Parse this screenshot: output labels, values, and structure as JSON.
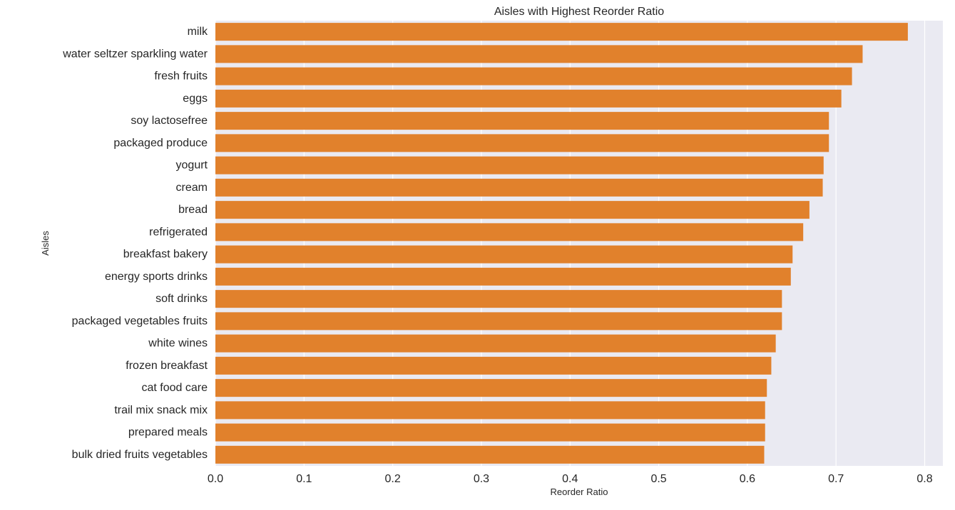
{
  "chart_data": {
    "type": "bar",
    "orientation": "horizontal",
    "title": "Aisles with Highest Reorder Ratio",
    "xlabel": "Reorder Ratio",
    "ylabel": "Aisles",
    "xlim": [
      0,
      0.82
    ],
    "xticks": [
      "0.0",
      "0.1",
      "0.2",
      "0.3",
      "0.4",
      "0.5",
      "0.6",
      "0.7",
      "0.8"
    ],
    "grid": true,
    "legend": "none",
    "categories": [
      "milk",
      "water seltzer sparkling water",
      "fresh fruits",
      "eggs",
      "soy lactosefree",
      "packaged produce",
      "yogurt",
      "cream",
      "bread",
      "refrigerated",
      "breakfast bakery",
      "energy sports drinks",
      "soft drinks",
      "packaged vegetables fruits",
      "white wines",
      "frozen breakfast",
      "cat food care",
      "trail mix snack mix",
      "prepared meals",
      "bulk dried fruits vegetables"
    ],
    "values": [
      0.781,
      0.73,
      0.718,
      0.706,
      0.692,
      0.692,
      0.686,
      0.685,
      0.67,
      0.663,
      0.651,
      0.649,
      0.639,
      0.639,
      0.632,
      0.627,
      0.622,
      0.62,
      0.62,
      0.619
    ],
    "colors": {
      "bar": "#e1812c",
      "plot_background": "#eaeaf2",
      "grid": "#ffffff",
      "text": "#262626"
    }
  }
}
